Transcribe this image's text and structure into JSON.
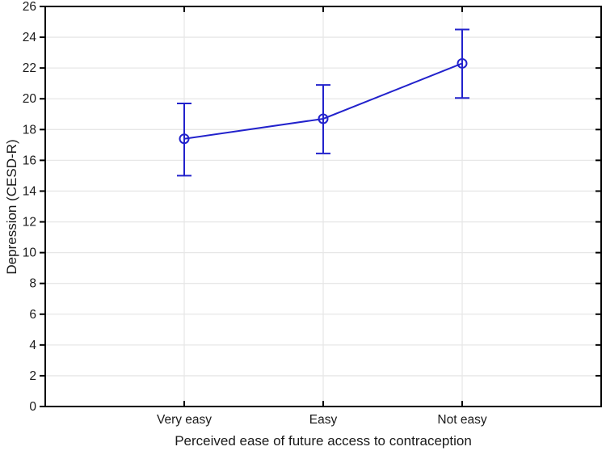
{
  "chart_data": {
    "type": "line",
    "title": "",
    "xlabel": "Perceived ease of future access to contraception",
    "ylabel": "Depression (CESD-R)",
    "categories": [
      "Very easy",
      "Easy",
      "Not easy"
    ],
    "series": [
      {
        "name": "Depression (CESD-R) mean",
        "values": [
          17.4,
          18.7,
          22.3
        ],
        "ci_lower": [
          15.0,
          16.45,
          20.05
        ],
        "ci_upper": [
          19.7,
          20.9,
          24.5
        ]
      }
    ],
    "ylim": [
      0,
      26
    ],
    "ytick_step": 2,
    "yticks": [
      0,
      2,
      4,
      6,
      8,
      10,
      12,
      14,
      16,
      18,
      20,
      22,
      24,
      26
    ],
    "grid": true,
    "legend": "none",
    "marker": "open-circle",
    "colors": {
      "series": "#2222cc",
      "frame": "#000000",
      "gridline": "#e7e7e7",
      "text": "#1a1a1a",
      "background": "#ffffff"
    }
  }
}
